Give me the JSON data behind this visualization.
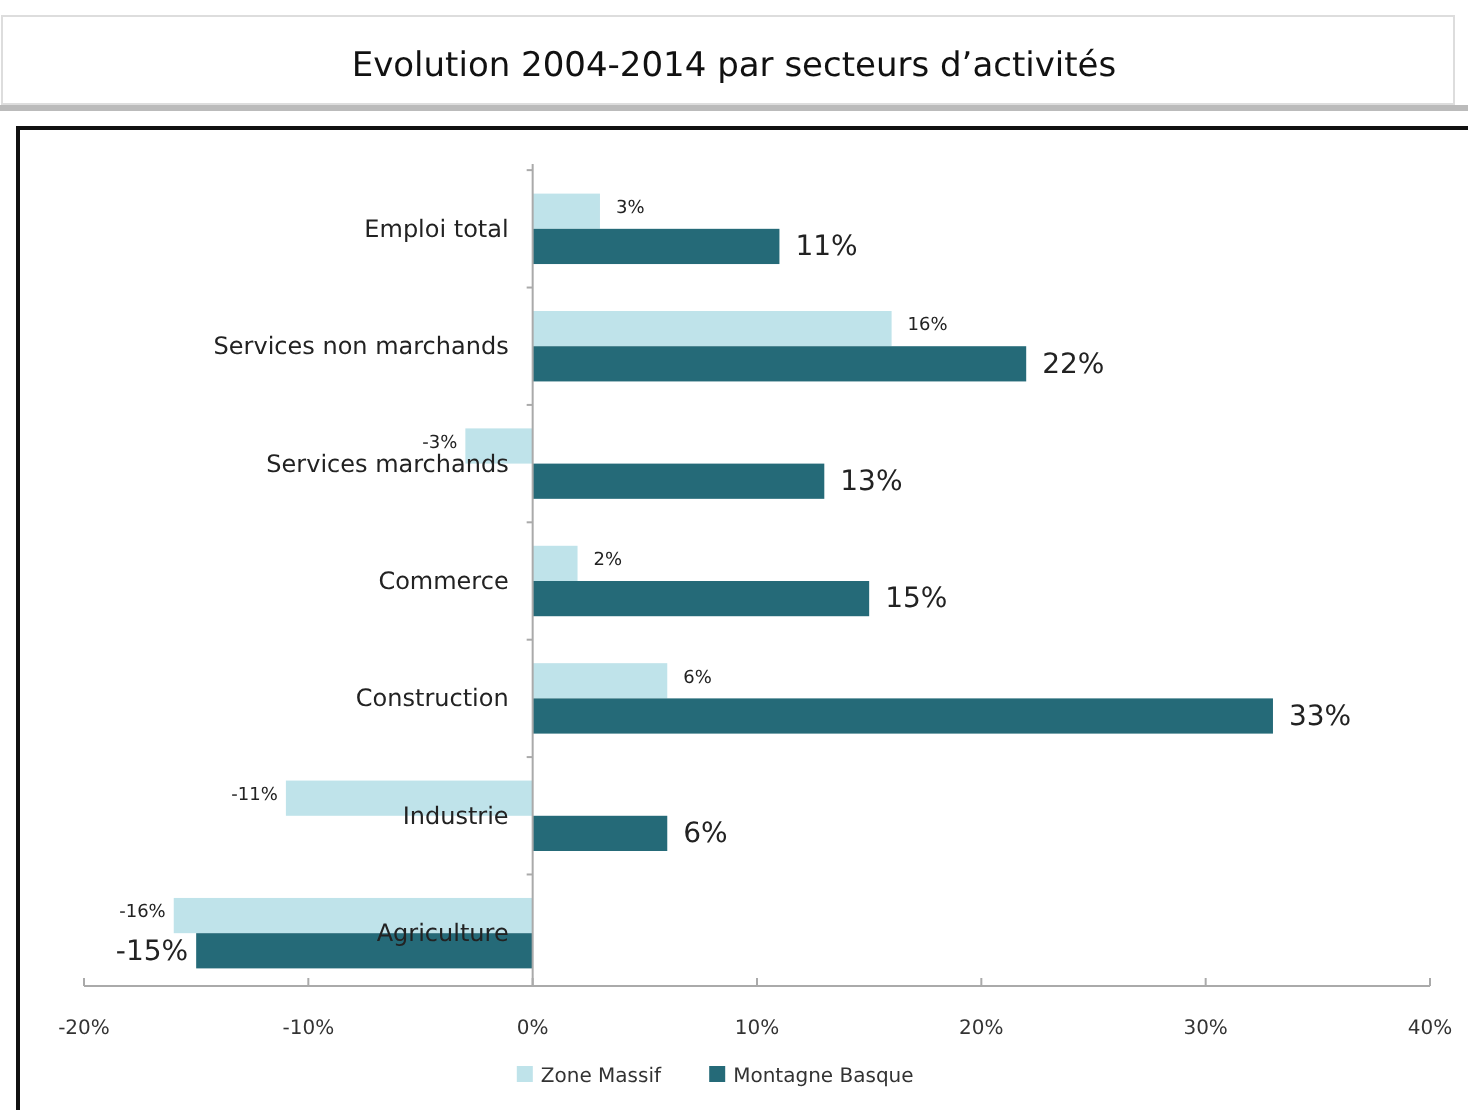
{
  "chart_data": {
    "type": "bar",
    "orientation": "horizontal",
    "title": "Evolution 2004-2014 par secteurs d’activités",
    "categories": [
      "Emploi total",
      "Services non marchands",
      "Services marchands",
      "Commerce",
      "Construction",
      "Industrie",
      "Agriculture"
    ],
    "series": [
      {
        "name": "Zone Massif",
        "color": "#bfe3ea",
        "values": [
          3,
          16,
          -3,
          2,
          6,
          -11,
          -16
        ],
        "value_labels": [
          "3%",
          "16%",
          "-3%",
          "2%",
          "6%",
          "-11%",
          "-16%"
        ]
      },
      {
        "name": "Montagne Basque",
        "color": "#256a78",
        "values": [
          11,
          22,
          13,
          15,
          33,
          6,
          -15
        ],
        "value_labels": [
          "11%",
          "22%",
          "13%",
          "15%",
          "33%",
          "6%",
          "-15%"
        ]
      }
    ],
    "xlim": [
      -20,
      40
    ],
    "xticks": [
      {
        "value": -20,
        "label": "-20%"
      },
      {
        "value": -10,
        "label": "-10%"
      },
      {
        "value": 0,
        "label": "0%"
      },
      {
        "value": 10,
        "label": "10%"
      },
      {
        "value": 20,
        "label": "20%"
      },
      {
        "value": 30,
        "label": "30%"
      },
      {
        "value": 40,
        "label": "40%"
      }
    ],
    "grid": false,
    "legend": "bottom"
  }
}
